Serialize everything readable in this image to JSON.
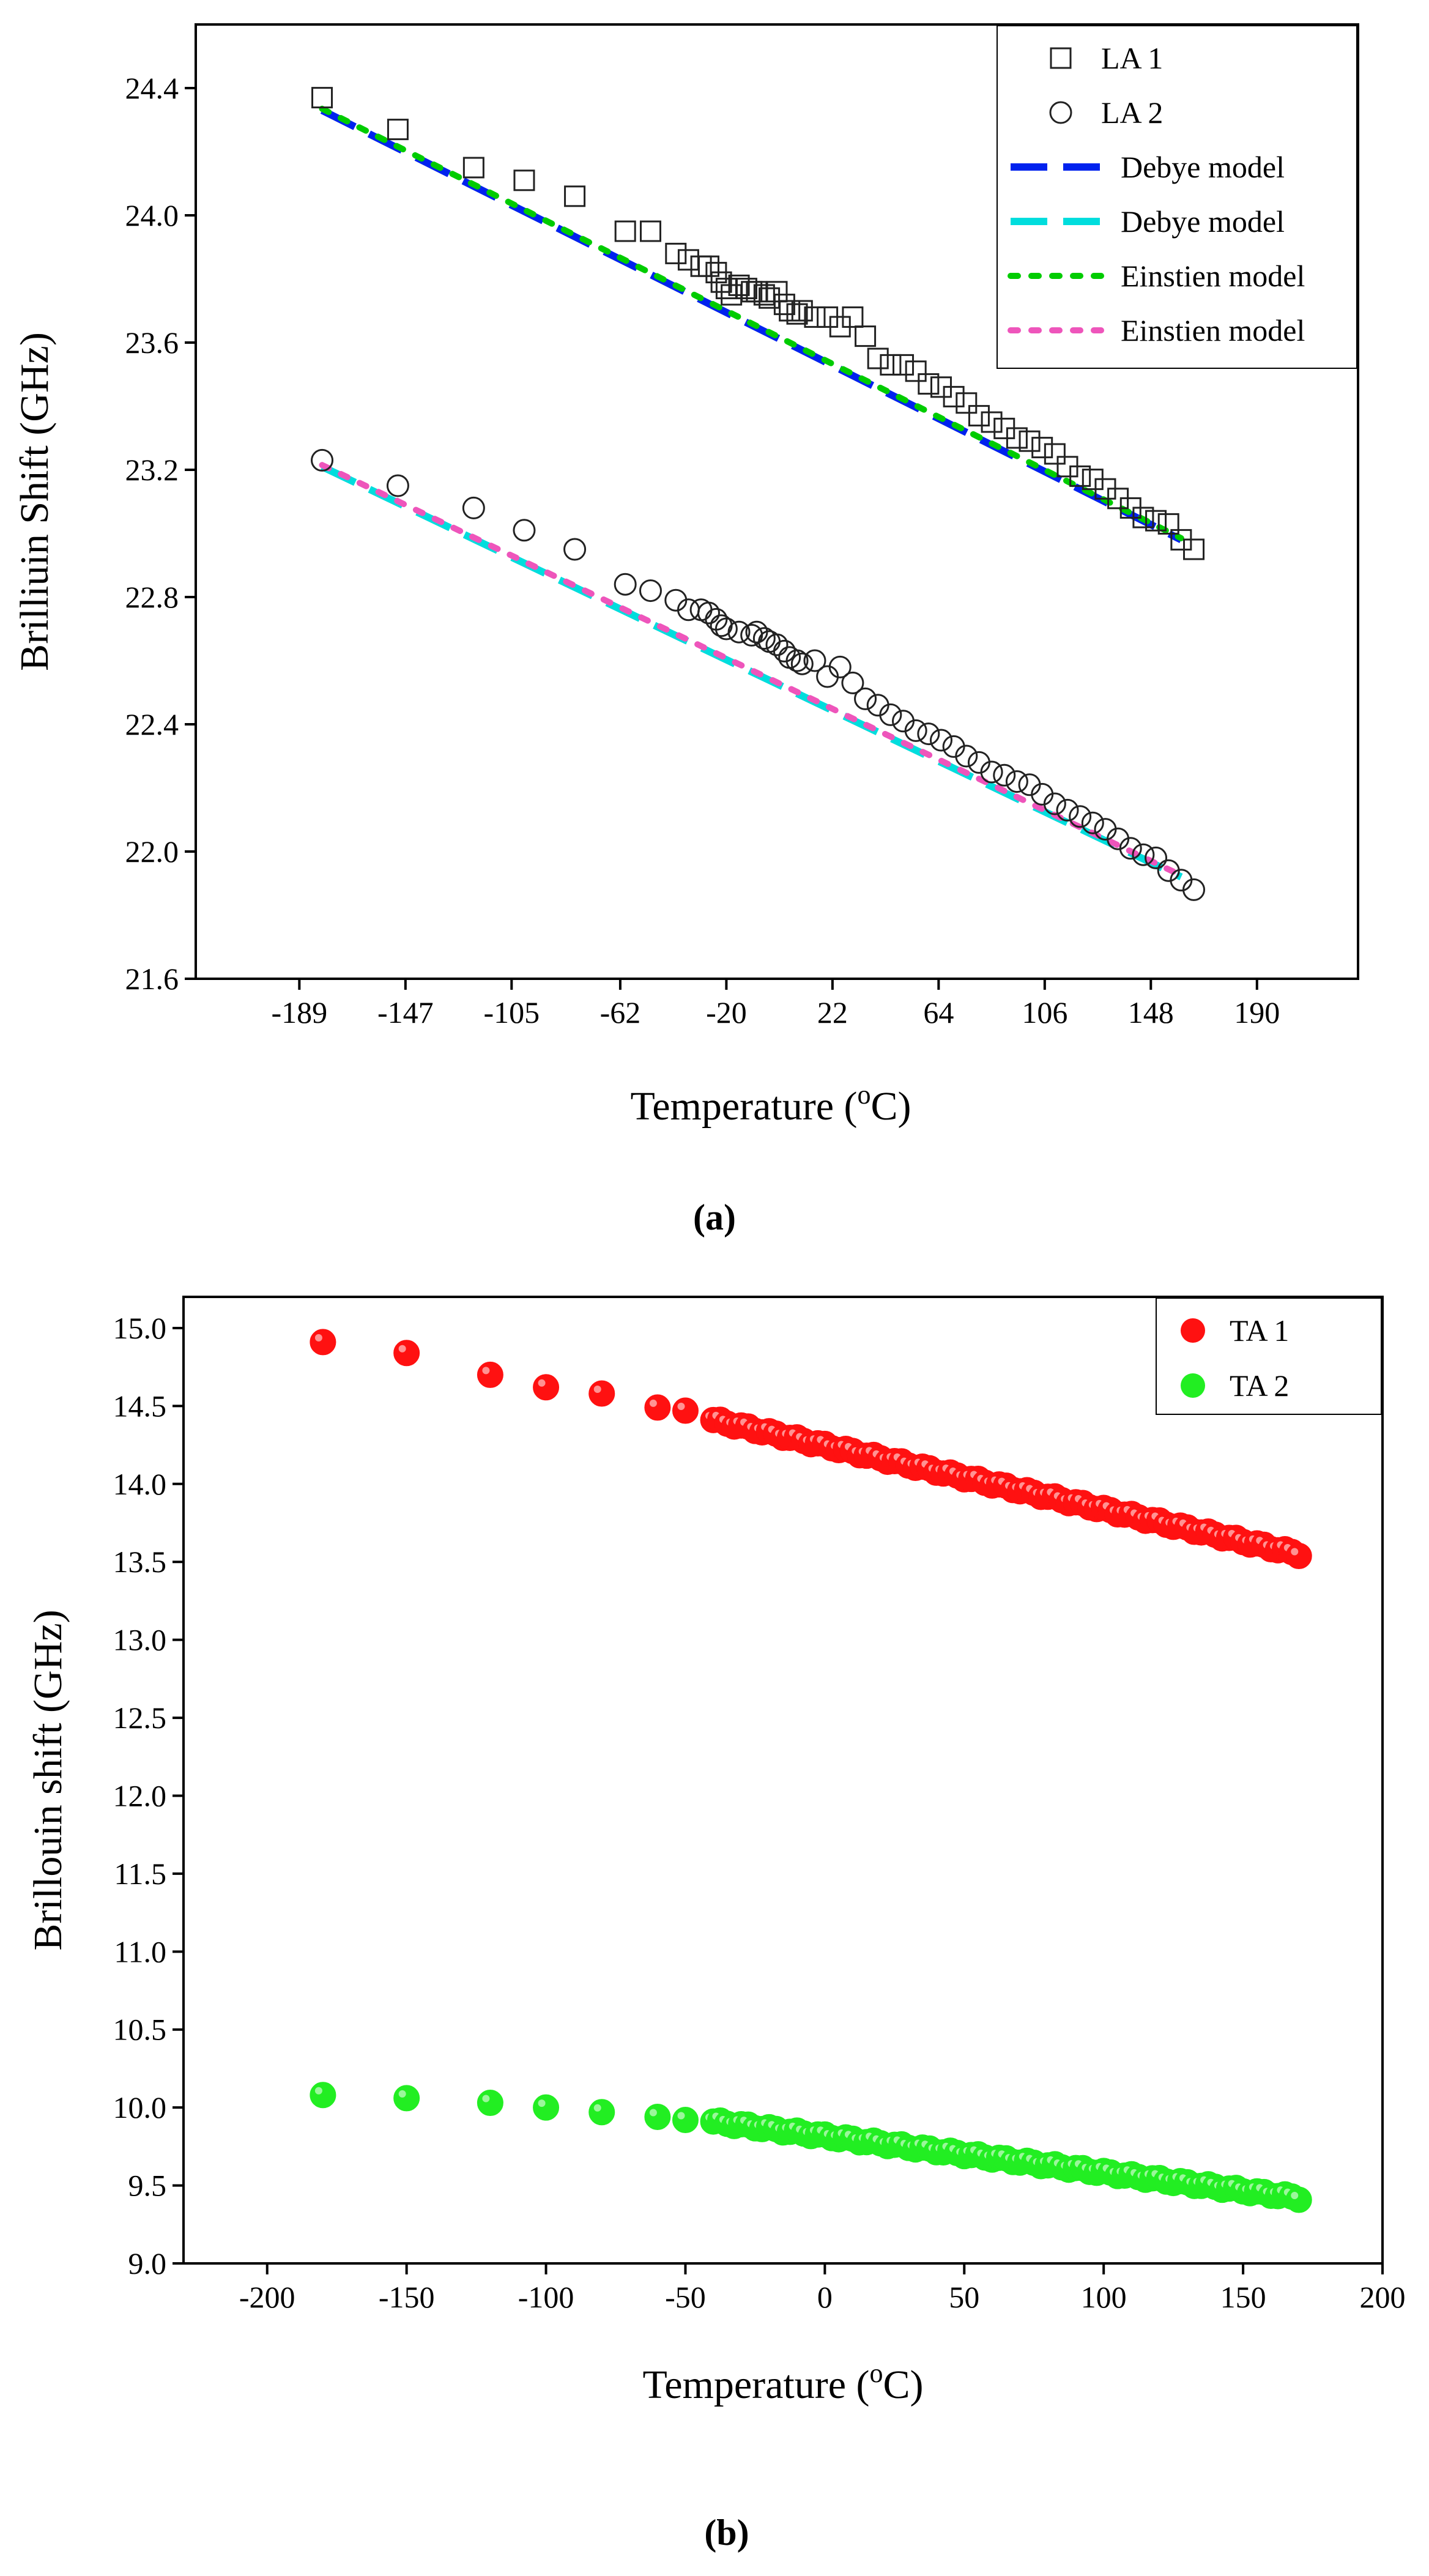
{
  "chart_data": [
    {
      "type": "scatter",
      "panel_label": "(a)",
      "xlabel_main": "Temperature (",
      "xlabel_sup": "o",
      "xlabel_tail": "C)",
      "ylabel": "Brilliuin Shift (GHz)",
      "xlim": [
        -230,
        230
      ],
      "ylim": [
        21.6,
        24.6
      ],
      "xticks": [
        -189,
        -147,
        -105,
        -62,
        -20,
        22,
        64,
        106,
        148,
        190
      ],
      "yticks": [
        21.6,
        22.0,
        22.4,
        22.8,
        23.2,
        23.6,
        24.0,
        24.4
      ],
      "legend_position": "top-right",
      "series": [
        {
          "name": "LA 1",
          "marker": "square",
          "x": [
            -180,
            -150,
            -120,
            -100,
            -80,
            -60,
            -50,
            -40,
            -35,
            -30,
            -27,
            -24,
            -22,
            -20,
            -18,
            -15,
            -12,
            -10,
            -8,
            -5,
            -3,
            0,
            3,
            5,
            8,
            10,
            15,
            20,
            25,
            30,
            35,
            40,
            45,
            50,
            55,
            60,
            65,
            70,
            75,
            80,
            85,
            90,
            95,
            100,
            105,
            110,
            115,
            120,
            125,
            130,
            135,
            140,
            145,
            150,
            155,
            160,
            165
          ],
          "y": [
            24.37,
            24.27,
            24.15,
            24.11,
            24.06,
            23.95,
            23.95,
            23.88,
            23.86,
            23.84,
            23.84,
            23.82,
            23.79,
            23.77,
            23.75,
            23.78,
            23.77,
            23.76,
            23.76,
            23.75,
            23.74,
            23.76,
            23.72,
            23.7,
            23.69,
            23.7,
            23.68,
            23.68,
            23.65,
            23.68,
            23.62,
            23.55,
            23.53,
            23.53,
            23.51,
            23.47,
            23.46,
            23.43,
            23.41,
            23.37,
            23.35,
            23.33,
            23.3,
            23.29,
            23.27,
            23.25,
            23.21,
            23.18,
            23.17,
            23.14,
            23.11,
            23.08,
            23.05,
            23.04,
            23.03,
            22.98,
            22.95
          ]
        },
        {
          "name": "LA 2",
          "marker": "circle",
          "x": [
            -180,
            -150,
            -120,
            -100,
            -80,
            -60,
            -50,
            -40,
            -35,
            -30,
            -27,
            -24,
            -22,
            -20,
            -15,
            -10,
            -8,
            -5,
            -3,
            0,
            3,
            5,
            8,
            10,
            15,
            20,
            25,
            30,
            35,
            40,
            45,
            50,
            55,
            60,
            65,
            70,
            75,
            80,
            85,
            90,
            95,
            100,
            105,
            110,
            115,
            120,
            125,
            130,
            135,
            140,
            145,
            150,
            155,
            160,
            165
          ],
          "y": [
            23.23,
            23.15,
            23.08,
            23.01,
            22.95,
            22.84,
            22.82,
            22.79,
            22.76,
            22.76,
            22.75,
            22.73,
            22.71,
            22.7,
            22.69,
            22.68,
            22.69,
            22.67,
            22.66,
            22.65,
            22.63,
            22.61,
            22.6,
            22.59,
            22.6,
            22.55,
            22.58,
            22.53,
            22.48,
            22.46,
            22.43,
            22.41,
            22.38,
            22.37,
            22.35,
            22.33,
            22.3,
            22.28,
            22.25,
            22.24,
            22.22,
            22.21,
            22.18,
            22.15,
            22.13,
            22.11,
            22.09,
            22.07,
            22.04,
            22.01,
            21.99,
            21.98,
            21.94,
            21.91,
            21.88
          ]
        },
        {
          "name": "Debye model",
          "style": "dash",
          "color": "#0022ee",
          "x": [
            -180,
            160
          ],
          "y": [
            24.33,
            22.98
          ]
        },
        {
          "name": "Debye model",
          "style": "dash",
          "color": "#00dddd",
          "x": [
            -180,
            160
          ],
          "y": [
            23.21,
            21.92
          ]
        },
        {
          "name": "Einstien model",
          "style": "dot",
          "color": "#00cc00",
          "x": [
            -180,
            160
          ],
          "y": [
            24.335,
            22.985
          ]
        },
        {
          "name": "Einstien model",
          "style": "dot",
          "color": "#ee55bb",
          "x": [
            -180,
            160
          ],
          "y": [
            23.215,
            21.925
          ]
        }
      ]
    },
    {
      "type": "scatter",
      "panel_label": "(b)",
      "xlabel_main": "Temperature (",
      "xlabel_sup": "o",
      "xlabel_tail": "C)",
      "ylabel": "Brillouin shift (GHz)",
      "xlim": [
        -230,
        200
      ],
      "ylim": [
        9.0,
        15.2
      ],
      "xticks": [
        -200,
        -150,
        -100,
        -50,
        0,
        50,
        100,
        150,
        200
      ],
      "yticks": [
        9.0,
        9.5,
        10.0,
        10.5,
        11.0,
        11.5,
        12.0,
        12.5,
        13.0,
        13.5,
        14.0,
        14.5,
        15.0
      ],
      "legend_position": "top-right",
      "series": [
        {
          "name": "TA 1",
          "color": "#ff1111",
          "x_start": -40,
          "x_end": 170,
          "x_step": 2.5,
          "y_start": 14.41,
          "y_end": 13.55,
          "extra_x": [
            -180,
            -150,
            -120,
            -100,
            -80,
            -60,
            -50
          ],
          "extra_y": [
            14.91,
            14.84,
            14.7,
            14.62,
            14.58,
            14.49,
            14.47
          ]
        },
        {
          "name": "TA 2",
          "color": "#22ee22",
          "x_start": -40,
          "x_end": 170,
          "x_step": 2.5,
          "y_start": 9.91,
          "y_end": 9.42,
          "extra_x": [
            -180,
            -150,
            -120,
            -100,
            -80,
            -60,
            -50
          ],
          "extra_y": [
            10.08,
            10.06,
            10.03,
            10.0,
            9.97,
            9.94,
            9.92
          ]
        }
      ]
    }
  ]
}
